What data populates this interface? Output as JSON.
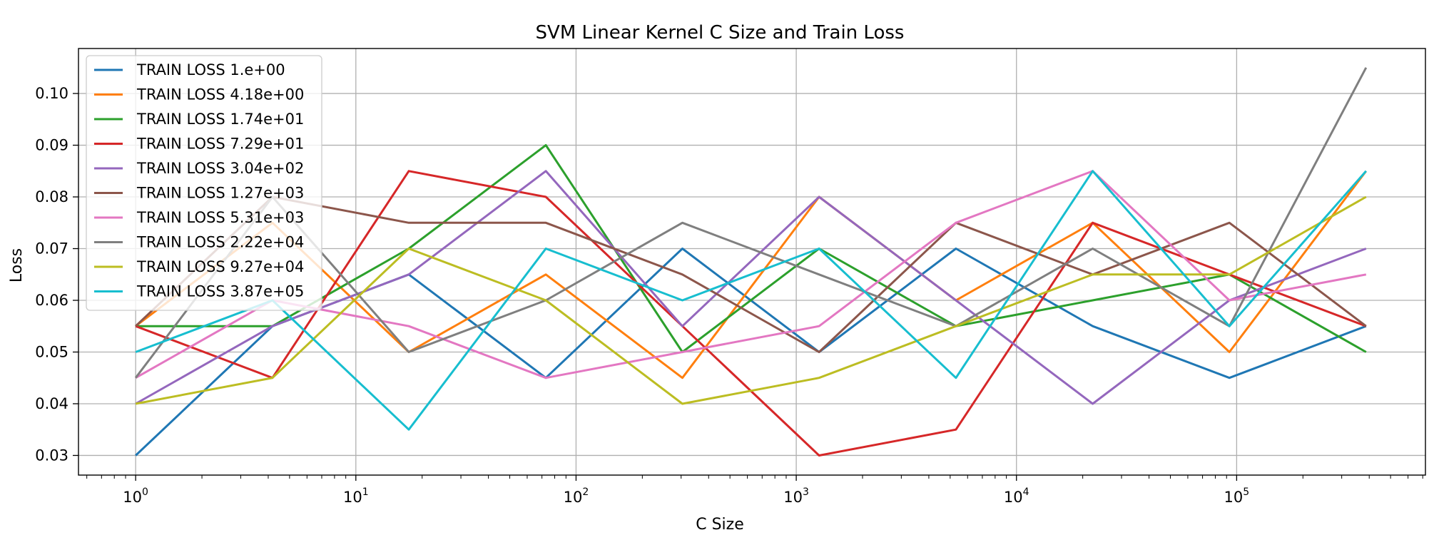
{
  "chart_data": {
    "type": "line",
    "title": "SVM Linear Kernel C Size and Train Loss",
    "xlabel": "C Size",
    "ylabel": "Loss",
    "xscale": "log",
    "xlim": [
      0.55,
      720000
    ],
    "ylim": [
      0.0262,
      0.1087
    ],
    "grid": true,
    "legend_position": "top-left",
    "x": [
      1,
      4.18,
      17.4,
      72.9,
      304,
      1270,
      5310,
      22200,
      92700,
      387000
    ],
    "xticks": [
      {
        "base": "10",
        "exp": "0",
        "value": 1
      },
      {
        "base": "10",
        "exp": "1",
        "value": 10
      },
      {
        "base": "10",
        "exp": "2",
        "value": 100
      },
      {
        "base": "10",
        "exp": "3",
        "value": 1000
      },
      {
        "base": "10",
        "exp": "4",
        "value": 10000
      },
      {
        "base": "10",
        "exp": "5",
        "value": 100000
      }
    ],
    "yticks": [
      "0.03",
      "0.04",
      "0.05",
      "0.06",
      "0.07",
      "0.08",
      "0.09",
      "0.10"
    ],
    "series": [
      {
        "name": "TRAIN LOSS 1.e+00",
        "color": "#1f77b4",
        "values": [
          0.03,
          0.055,
          0.065,
          0.045,
          0.07,
          0.05,
          0.07,
          0.055,
          0.045,
          0.055
        ]
      },
      {
        "name": "TRAIN LOSS 4.18e+00",
        "color": "#ff7f0e",
        "values": [
          0.055,
          0.075,
          0.05,
          0.065,
          0.045,
          0.08,
          0.06,
          0.075,
          0.05,
          0.085
        ]
      },
      {
        "name": "TRAIN LOSS 1.74e+01",
        "color": "#2ca02c",
        "values": [
          0.055,
          0.055,
          0.07,
          0.09,
          0.05,
          0.07,
          0.055,
          0.06,
          0.065,
          0.05
        ]
      },
      {
        "name": "TRAIN LOSS 7.29e+01",
        "color": "#d62728",
        "values": [
          0.055,
          0.045,
          0.085,
          0.08,
          0.055,
          0.03,
          0.035,
          0.075,
          0.065,
          0.055
        ]
      },
      {
        "name": "TRAIN LOSS 3.04e+02",
        "color": "#9467bd",
        "values": [
          0.04,
          0.055,
          0.065,
          0.085,
          0.055,
          0.08,
          0.06,
          0.04,
          0.06,
          0.07
        ]
      },
      {
        "name": "TRAIN LOSS 1.27e+03",
        "color": "#8c564b",
        "values": [
          0.055,
          0.08,
          0.075,
          0.075,
          0.065,
          0.05,
          0.075,
          0.065,
          0.075,
          0.055
        ]
      },
      {
        "name": "TRAIN LOSS 5.31e+03",
        "color": "#e377c2",
        "values": [
          0.045,
          0.06,
          0.055,
          0.045,
          0.05,
          0.055,
          0.075,
          0.085,
          0.06,
          0.065
        ]
      },
      {
        "name": "TRAIN LOSS 2.22e+04",
        "color": "#7f7f7f",
        "values": [
          0.045,
          0.08,
          0.05,
          0.06,
          0.075,
          0.065,
          0.055,
          0.07,
          0.055,
          0.105
        ]
      },
      {
        "name": "TRAIN LOSS 9.27e+04",
        "color": "#bcbd22",
        "values": [
          0.04,
          0.045,
          0.07,
          0.06,
          0.04,
          0.045,
          0.055,
          0.065,
          0.065,
          0.08
        ]
      },
      {
        "name": "TRAIN LOSS 3.87e+05",
        "color": "#17becf",
        "values": [
          0.05,
          0.06,
          0.035,
          0.07,
          0.06,
          0.07,
          0.045,
          0.085,
          0.055,
          0.085
        ]
      }
    ]
  }
}
